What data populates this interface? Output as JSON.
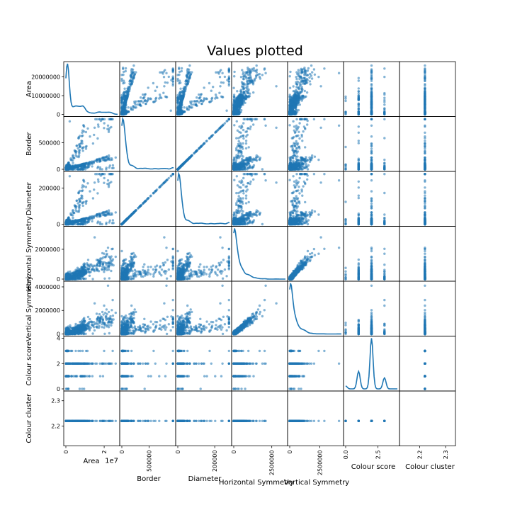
{
  "chart_data": {
    "type": "scatter",
    "title": "Values plotted",
    "variables": [
      "Area",
      "Border",
      "Diameter",
      "Horizontal Symmetry",
      "Vertical Symmetry",
      "Colour score",
      "Colour cluster"
    ],
    "diagonal": "kde",
    "ranges": [
      [
        0,
        27000000
      ],
      [
        0,
        950000
      ],
      [
        0,
        280000
      ],
      [
        0,
        3400000
      ],
      [
        0,
        4300000
      ],
      [
        0,
        4
      ],
      [
        2.13,
        2.33
      ]
    ],
    "y_ticks": [
      {
        "values": [
          0,
          10000000,
          20000000
        ],
        "labels": [
          "0",
          "10000000",
          "20000000"
        ]
      },
      {
        "values": [
          0,
          500000
        ],
        "labels": [
          "0",
          "500000"
        ]
      },
      {
        "values": [
          0,
          200000
        ],
        "labels": [
          "0",
          "200000"
        ]
      },
      {
        "values": [
          0,
          2000000
        ],
        "labels": [
          "0",
          "2000000"
        ]
      },
      {
        "values": [
          0,
          2000000,
          4000000
        ],
        "labels": [
          "0",
          "2000000",
          "4000000"
        ]
      },
      {
        "values": [
          0,
          2,
          4
        ],
        "labels": [
          "0",
          "2",
          "4"
        ]
      },
      {
        "values": [
          2.2,
          2.3
        ],
        "labels": [
          "2.2",
          "2.3"
        ]
      }
    ],
    "x_ticks": [
      {
        "values": [
          0,
          20000000
        ],
        "labels": [
          "0",
          "2"
        ],
        "offset_text": "1e7"
      },
      {
        "values": [
          0,
          500000
        ],
        "labels": [
          "0",
          "500000"
        ]
      },
      {
        "values": [
          0,
          200000
        ],
        "labels": [
          "0",
          "200000"
        ]
      },
      {
        "values": [
          0,
          2500000
        ],
        "labels": [
          "0",
          "2500000"
        ]
      },
      {
        "values": [
          0,
          2500000
        ],
        "labels": [
          "0",
          "2500000"
        ]
      },
      {
        "values": [
          0,
          2.5
        ],
        "labels": [
          "0.0",
          "2.5"
        ]
      },
      {
        "values": [
          2.2,
          2.3
        ],
        "labels": [
          "2.2",
          "2.3"
        ]
      }
    ],
    "colour_score_levels": [
      0,
      1,
      2,
      3
    ],
    "colour_cluster_value": 2.22,
    "point_color": "#1f77b4",
    "grid": false,
    "legend": "none"
  }
}
